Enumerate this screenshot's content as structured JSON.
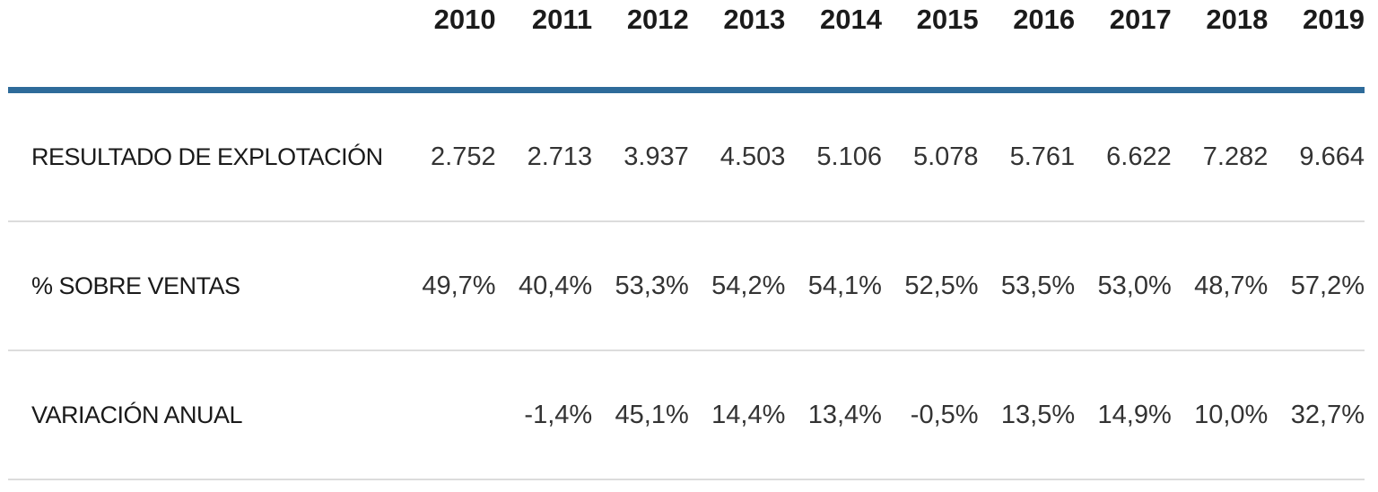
{
  "table": {
    "column_headers": [
      "2010",
      "2011",
      "2012",
      "2013",
      "2014",
      "2015",
      "2016",
      "2017",
      "2018",
      "2019"
    ],
    "rows": [
      {
        "label": "RESULTADO DE EXPLOTACIÓN",
        "values": [
          "2.752",
          "2.713",
          "3.937",
          "4.503",
          "5.106",
          "5.078",
          "5.761",
          "6.622",
          "7.282",
          "9.664"
        ]
      },
      {
        "label": "% SOBRE VENTAS",
        "values": [
          "49,7%",
          "40,4%",
          "53,3%",
          "54,2%",
          "54,1%",
          "52,5%",
          "53,5%",
          "53,0%",
          "48,7%",
          "57,2%"
        ]
      },
      {
        "label": "VARIACIÓN ANUAL",
        "values": [
          "",
          "-1,4%",
          "45,1%",
          "14,4%",
          "13,4%",
          "-0,5%",
          "13,5%",
          "14,9%",
          "10,0%",
          "32,7%"
        ]
      }
    ],
    "colors": {
      "header_rule": "#2e6b9a",
      "row_divider": "#dcdcdc",
      "header_text": "#1b1b1b",
      "body_text": "#333333"
    }
  },
  "chart_data": {
    "type": "table",
    "categories": [
      "2010",
      "2011",
      "2012",
      "2013",
      "2014",
      "2015",
      "2016",
      "2017",
      "2018",
      "2019"
    ],
    "series": [
      {
        "name": "RESULTADO DE EXPLOTACIÓN",
        "values": [
          2752,
          2713,
          3937,
          4503,
          5106,
          5078,
          5761,
          6622,
          7282,
          9664
        ]
      },
      {
        "name": "% SOBRE VENTAS",
        "values": [
          49.7,
          40.4,
          53.3,
          54.2,
          54.1,
          52.5,
          53.5,
          53.0,
          48.7,
          57.2
        ]
      },
      {
        "name": "VARIACIÓN ANUAL",
        "values": [
          null,
          -1.4,
          45.1,
          14.4,
          13.4,
          -0.5,
          13.5,
          14.9,
          10.0,
          32.7
        ]
      }
    ],
    "title": "",
    "xlabel": "",
    "ylabel": "",
    "legend": false,
    "grid": false
  }
}
